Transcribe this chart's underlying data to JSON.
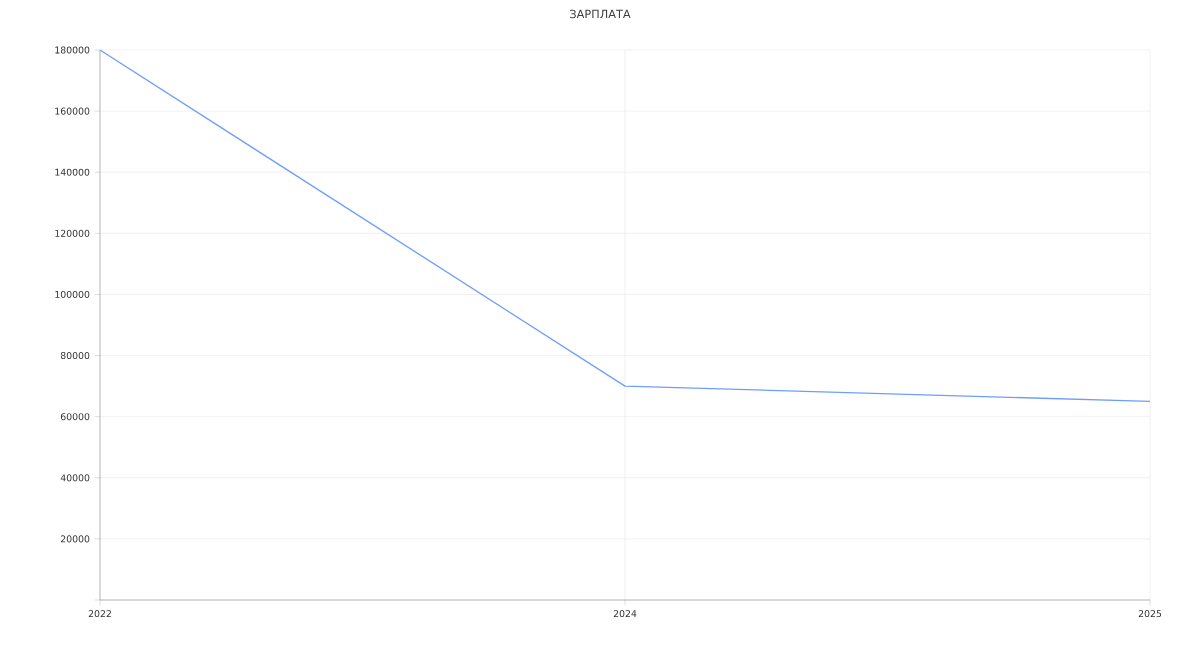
{
  "chart_data": {
    "type": "line",
    "title": "ЗАРПЛАТА",
    "categories": [
      "2022",
      "2024",
      "2025"
    ],
    "series": [
      {
        "color": "#6f9ef8",
        "values": [
          180000,
          70000,
          65000
        ]
      }
    ],
    "ylim": [
      0,
      180000
    ],
    "yticks": [
      {
        "value": 0,
        "label": null
      },
      20000,
      40000,
      60000,
      80000,
      100000,
      120000,
      140000,
      160000,
      180000
    ],
    "grid": true,
    "marker": "none",
    "line_style": "solid"
  }
}
